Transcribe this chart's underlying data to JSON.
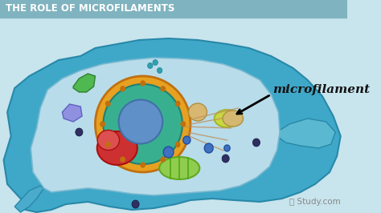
{
  "title": "THE ROLE OF MICROFILAMENTS",
  "title_color": "#ffffff",
  "title_bg": "#7fb3bf",
  "bg_color": "#c8e4ed",
  "cell_outer_color": "#5ab3cc",
  "cell_inner_color": "#a8d8e8",
  "label_text": "microfilament",
  "label_color": "#111111",
  "watermark": "Study.com",
  "watermark_color": "#999999",
  "nucleus_outer": "#e8a020",
  "nucleus_inner": "#40b8a0",
  "nucleus_center": "#6090c8"
}
